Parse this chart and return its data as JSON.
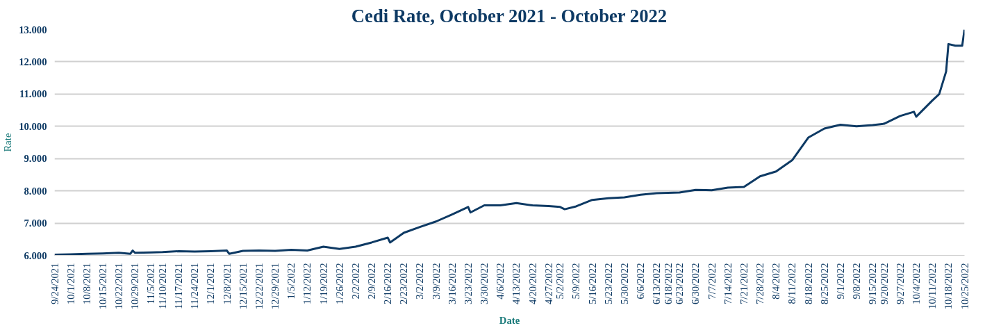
{
  "chart_data": {
    "type": "line",
    "title": "Cedi Rate, October 2021 - October 2022",
    "xlabel": "Date",
    "ylabel": "Rate",
    "x": [
      "2021-09-24",
      "2021-10-01",
      "2021-10-08",
      "2021-10-15",
      "2021-10-22",
      "2021-10-27",
      "2021-10-28",
      "2021-10-29",
      "2021-11-05",
      "2021-11-10",
      "2021-11-17",
      "2021-11-24",
      "2021-12-01",
      "2021-12-08",
      "2021-12-09",
      "2021-12-15",
      "2021-12-22",
      "2021-12-29",
      "2022-01-05",
      "2022-01-12",
      "2022-01-19",
      "2022-01-26",
      "2022-02-02",
      "2022-02-09",
      "2022-02-16",
      "2022-02-17",
      "2022-02-23",
      "2022-03-02",
      "2022-03-09",
      "2022-03-16",
      "2022-03-23",
      "2022-03-24",
      "2022-03-30",
      "2022-04-06",
      "2022-04-13",
      "2022-04-20",
      "2022-04-27",
      "2022-05-02",
      "2022-05-04",
      "2022-05-09",
      "2022-05-16",
      "2022-05-23",
      "2022-05-30",
      "2022-06-06",
      "2022-06-13",
      "2022-06-18",
      "2022-06-23",
      "2022-06-30",
      "2022-07-07",
      "2022-07-14",
      "2022-07-21",
      "2022-07-28",
      "2022-08-04",
      "2022-08-11",
      "2022-08-18",
      "2022-08-25",
      "2022-09-01",
      "2022-09-08",
      "2022-09-15",
      "2022-09-20",
      "2022-09-27",
      "2022-10-03",
      "2022-10-04",
      "2022-10-11",
      "2022-10-14",
      "2022-10-17",
      "2022-10-18",
      "2022-10-21",
      "2022-10-24",
      "2022-10-25"
    ],
    "series": [
      {
        "color": "#0e3a64",
        "values": [
          6.02,
          6.03,
          6.05,
          6.06,
          6.08,
          6.05,
          6.15,
          6.08,
          6.09,
          6.1,
          6.13,
          6.12,
          6.13,
          6.15,
          6.05,
          6.14,
          6.15,
          6.14,
          6.17,
          6.15,
          6.27,
          6.2,
          6.27,
          6.4,
          6.55,
          6.4,
          6.7,
          6.88,
          7.05,
          7.27,
          7.5,
          7.33,
          7.55,
          7.55,
          7.62,
          7.55,
          7.53,
          7.5,
          7.43,
          7.52,
          7.72,
          7.77,
          7.8,
          7.88,
          7.93,
          7.94,
          7.95,
          8.03,
          8.02,
          8.1,
          8.12,
          8.45,
          8.6,
          8.95,
          9.65,
          9.93,
          10.05,
          10.0,
          10.04,
          10.08,
          10.32,
          10.45,
          10.3,
          10.8,
          11.0,
          11.7,
          12.55,
          12.5,
          12.5,
          13.0
        ]
      }
    ],
    "ylim": [
      6,
      13
    ],
    "yticks": [
      {
        "value": 6,
        "label": "6.000"
      },
      {
        "value": 7,
        "label": "7.000"
      },
      {
        "value": 8,
        "label": "8.000"
      },
      {
        "value": 9,
        "label": "9.000"
      },
      {
        "value": 10,
        "label": "10.000"
      },
      {
        "value": 11,
        "label": "11.000"
      },
      {
        "value": 12,
        "label": "12.000"
      },
      {
        "value": 13,
        "label": "13.000"
      }
    ],
    "xlim": [
      "2021-09-24",
      "2022-10-25"
    ],
    "xticks": [
      {
        "value": "2021-09-24",
        "label": "9/24/2021"
      },
      {
        "value": "2021-10-01",
        "label": "10/1/2021"
      },
      {
        "value": "2021-10-08",
        "label": "10/8/2021"
      },
      {
        "value": "2021-10-15",
        "label": "10/15/2021"
      },
      {
        "value": "2021-10-22",
        "label": "10/22/2021"
      },
      {
        "value": "2021-10-29",
        "label": "10/29/2021"
      },
      {
        "value": "2021-11-05",
        "label": "11/5/2021"
      },
      {
        "value": "2021-11-10",
        "label": "11/10/2021"
      },
      {
        "value": "2021-11-17",
        "label": "11/17/2021"
      },
      {
        "value": "2021-11-24",
        "label": "11/24/2021"
      },
      {
        "value": "2021-12-01",
        "label": "12/1/2021"
      },
      {
        "value": "2021-12-08",
        "label": "12/8/2021"
      },
      {
        "value": "2021-12-15",
        "label": "12/15/2021"
      },
      {
        "value": "2021-12-22",
        "label": "12/22/2021"
      },
      {
        "value": "2021-12-29",
        "label": "12/29/2021"
      },
      {
        "value": "2022-01-05",
        "label": "1/5/2022"
      },
      {
        "value": "2022-01-12",
        "label": "1/12/2022"
      },
      {
        "value": "2022-01-19",
        "label": "1/19/2022"
      },
      {
        "value": "2022-01-26",
        "label": "1/26/2022"
      },
      {
        "value": "2022-02-02",
        "label": "2/2/2022"
      },
      {
        "value": "2022-02-09",
        "label": "2/9/2022"
      },
      {
        "value": "2022-02-16",
        "label": "2/16/2022"
      },
      {
        "value": "2022-02-23",
        "label": "2/23/2022"
      },
      {
        "value": "2022-03-02",
        "label": "3/2/2022"
      },
      {
        "value": "2022-03-09",
        "label": "3/9/2022"
      },
      {
        "value": "2022-03-16",
        "label": "3/16/2022"
      },
      {
        "value": "2022-03-23",
        "label": "3/23/2022"
      },
      {
        "value": "2022-03-30",
        "label": "3/30/2022"
      },
      {
        "value": "2022-04-06",
        "label": "4/6/2022"
      },
      {
        "value": "2022-04-13",
        "label": "4/13/2022"
      },
      {
        "value": "2022-04-20",
        "label": "4/20/2022"
      },
      {
        "value": "2022-04-27",
        "label": "4/27/2022"
      },
      {
        "value": "2022-05-02",
        "label": "5/2/2022"
      },
      {
        "value": "2022-05-09",
        "label": "5/9/2022"
      },
      {
        "value": "2022-05-16",
        "label": "5/16/2022"
      },
      {
        "value": "2022-05-23",
        "label": "5/23/2022"
      },
      {
        "value": "2022-05-30",
        "label": "5/30/2022"
      },
      {
        "value": "2022-06-06",
        "label": "6/6/2022"
      },
      {
        "value": "2022-06-13",
        "label": "6/13/2022"
      },
      {
        "value": "2022-06-18",
        "label": "6/18/2022"
      },
      {
        "value": "2022-06-23",
        "label": "6/23/2022"
      },
      {
        "value": "2022-06-30",
        "label": "6/30/2022"
      },
      {
        "value": "2022-07-07",
        "label": "7/7/2022"
      },
      {
        "value": "2022-07-14",
        "label": "7/14/2022"
      },
      {
        "value": "2022-07-21",
        "label": "7/21/2022"
      },
      {
        "value": "2022-07-28",
        "label": "7/28/2022"
      },
      {
        "value": "2022-08-04",
        "label": "8/4/2022"
      },
      {
        "value": "2022-08-11",
        "label": "8/11/2022"
      },
      {
        "value": "2022-08-18",
        "label": "8/18/2022"
      },
      {
        "value": "2022-08-25",
        "label": "8/25/2022"
      },
      {
        "value": "2022-09-01",
        "label": "9/1/2022"
      },
      {
        "value": "2022-09-08",
        "label": "9/8/2022"
      },
      {
        "value": "2022-09-15",
        "label": "9/15/2022"
      },
      {
        "value": "2022-09-20",
        "label": "9/20/2022"
      },
      {
        "value": "2022-09-27",
        "label": "9/27/2022"
      },
      {
        "value": "2022-10-04",
        "label": "10/4/2022"
      },
      {
        "value": "2022-10-11",
        "label": "10/11/2022"
      },
      {
        "value": "2022-10-18",
        "label": "10/18/2022"
      },
      {
        "value": "2022-10-25",
        "label": "10/25/2022"
      }
    ],
    "grid": "y",
    "marker": "none",
    "line_style": "solid"
  }
}
